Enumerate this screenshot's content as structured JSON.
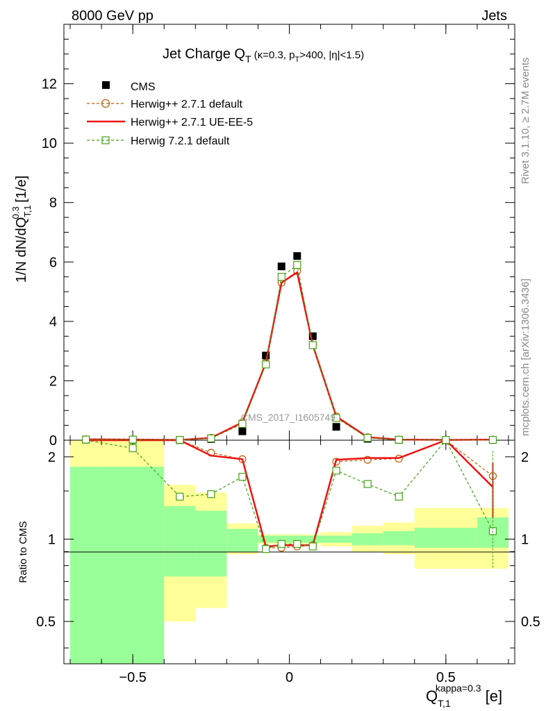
{
  "header": {
    "energy": "8000 GeV pp",
    "process": "Jets"
  },
  "side": {
    "rivet": "Rivet 3.1.10, ≥ 2.7M events",
    "mcplots": "mcplots.cern.ch [arXiv:1306.3436]"
  },
  "analysis_id": "CMS_2017_I1605749",
  "chart_data": {
    "type": "scatter",
    "title": "Jet Charge Q_T (κ=0.3, p_T>400, |η|<1.5)",
    "ylabel": "1/N dN/dQ_{T,1}^{0.3} [1/e]",
    "xlabel": "Q_{T,1}^{kappa=0.3} [e]",
    "ratio_ylabel": "Ratio to CMS",
    "xlim": [
      -0.72,
      0.72
    ],
    "ylim_main": [
      0,
      14
    ],
    "ylim_ratio": [
      0.35,
      2.3
    ],
    "x_ticks": [
      -0.5,
      0,
      0.5
    ],
    "x_tick_labels": [
      "−0.5",
      "0",
      "0.5"
    ],
    "y_ticks_main": [
      0,
      2,
      4,
      6,
      8,
      10,
      12
    ],
    "y_ticks_ratio": [
      0.5,
      1,
      2
    ],
    "legend_position": "top-left",
    "bins_x": [
      -0.65,
      -0.5,
      -0.35,
      -0.25,
      -0.15,
      -0.075,
      -0.025,
      0.025,
      0.075,
      0.15,
      0.25,
      0.35,
      0.5,
      0.65
    ],
    "bin_edges": [
      -0.7,
      -0.6,
      -0.4,
      -0.3,
      -0.2,
      -0.1,
      -0.05,
      0.0,
      0.05,
      0.1,
      0.2,
      0.3,
      0.4,
      0.6,
      0.7
    ],
    "series": [
      {
        "name": "CMS",
        "style": "data",
        "color": "#000000",
        "values": [
          0.02,
          0.01,
          0.005,
          0.04,
          0.3,
          2.85,
          5.85,
          6.2,
          3.5,
          0.45,
          0.05,
          0.01,
          0.005,
          0.01
        ]
      },
      {
        "name": "Herwig++ 2.7.1 default",
        "style": "dashed-circle",
        "color": "#c05a00",
        "values": [
          0.03,
          0.02,
          0.01,
          0.08,
          0.6,
          2.6,
          5.3,
          5.7,
          3.2,
          0.8,
          0.1,
          0.02,
          0.01,
          0.02
        ],
        "ratio": [
          2.5,
          2.5,
          2.5,
          2.07,
          1.96,
          0.93,
          0.93,
          0.94,
          0.95,
          1.92,
          1.95,
          1.97,
          2.5,
          1.7
        ]
      },
      {
        "name": "Herwig++ 2.7.1 UE-EE-5",
        "style": "solid",
        "color": "#ee1111",
        "values": [
          0.03,
          0.02,
          0.01,
          0.08,
          0.6,
          2.6,
          5.3,
          5.65,
          3.2,
          0.8,
          0.1,
          0.02,
          0.01,
          0.02
        ],
        "ratio": [
          2.5,
          2.5,
          2.5,
          2.02,
          1.96,
          0.94,
          0.95,
          0.95,
          0.95,
          1.95,
          1.98,
          1.98,
          2.5,
          1.55
        ]
      },
      {
        "name": "Herwig 7.2.1 default",
        "style": "dashed-square",
        "color": "#44a012",
        "values": [
          0.02,
          0.02,
          0.01,
          0.06,
          0.55,
          2.55,
          5.5,
          5.9,
          3.2,
          0.75,
          0.08,
          0.015,
          0.01,
          0.01
        ],
        "ratio": [
          2.5,
          2.15,
          1.43,
          1.46,
          1.69,
          0.92,
          0.96,
          0.96,
          0.94,
          1.78,
          1.59,
          1.43,
          2.5,
          1.07
        ]
      }
    ],
    "ratio_bands": {
      "stat_color": "#99ff99",
      "total_color": "#ffff99",
      "green": [
        [
          0.35,
          1.84
        ],
        [
          0.35,
          1.84
        ],
        [
          0.73,
          1.32
        ],
        [
          0.73,
          1.27
        ],
        [
          0.9,
          1.09
        ],
        [
          0.97,
          1.03
        ],
        [
          0.97,
          1.03
        ],
        [
          0.97,
          1.03
        ],
        [
          0.97,
          1.03
        ],
        [
          0.97,
          1.03
        ],
        [
          0.95,
          1.05
        ],
        [
          0.95,
          1.07
        ],
        [
          0.93,
          1.1
        ],
        [
          0.93,
          1.2
        ],
        [
          0.85,
          1.3
        ]
      ],
      "yellow": [
        [
          0.35,
          2.3
        ],
        [
          0.35,
          2.3
        ],
        [
          0.5,
          1.58
        ],
        [
          0.56,
          1.48
        ],
        [
          0.88,
          1.14
        ],
        [
          0.96,
          1.04
        ],
        [
          0.96,
          1.04
        ],
        [
          0.96,
          1.04
        ],
        [
          0.96,
          1.04
        ],
        [
          0.94,
          1.06
        ],
        [
          0.9,
          1.12
        ],
        [
          0.88,
          1.15
        ],
        [
          0.78,
          1.3
        ],
        [
          0.78,
          1.3
        ],
        [
          0.44,
          1.58
        ]
      ]
    }
  }
}
